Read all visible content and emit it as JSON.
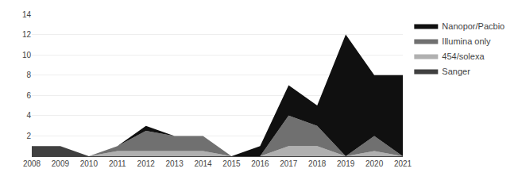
{
  "chart_data": {
    "type": "area",
    "stacked": true,
    "x": [
      2008,
      2009,
      2010,
      2011,
      2012,
      2013,
      2014,
      2015,
      2016,
      2017,
      2018,
      2019,
      2020,
      2021
    ],
    "series": [
      {
        "name": "Sanger",
        "color": "#404040",
        "values": [
          1,
          1,
          0,
          0,
          0,
          0,
          0,
          0,
          0,
          0,
          0,
          0,
          0,
          0
        ]
      },
      {
        "name": "454/solexa",
        "color": "#b0b0b0",
        "values": [
          0,
          0,
          0,
          0.5,
          0.5,
          0.5,
          0.5,
          0,
          0,
          1,
          1,
          0,
          0.5,
          0
        ]
      },
      {
        "name": "Illumina only",
        "color": "#707070",
        "values": [
          0,
          0,
          0,
          0.5,
          2,
          1.5,
          1.5,
          0,
          0,
          3,
          2,
          0,
          1.5,
          0
        ]
      },
      {
        "name": "Nanopor/Pacbio",
        "color": "#101010",
        "values": [
          0,
          0,
          0,
          0,
          0.5,
          0,
          0,
          0,
          1,
          3,
          2,
          12,
          6,
          8
        ]
      }
    ],
    "xlim": [
      2008,
      2021
    ],
    "xticks": [
      2008,
      2009,
      2010,
      2011,
      2012,
      2013,
      2014,
      2015,
      2016,
      2017,
      2018,
      2019,
      2020,
      2021
    ],
    "ylim": [
      0,
      14
    ],
    "yticks": [
      2,
      4,
      6,
      8,
      10,
      12,
      14
    ],
    "grid": true,
    "legend": "right"
  }
}
